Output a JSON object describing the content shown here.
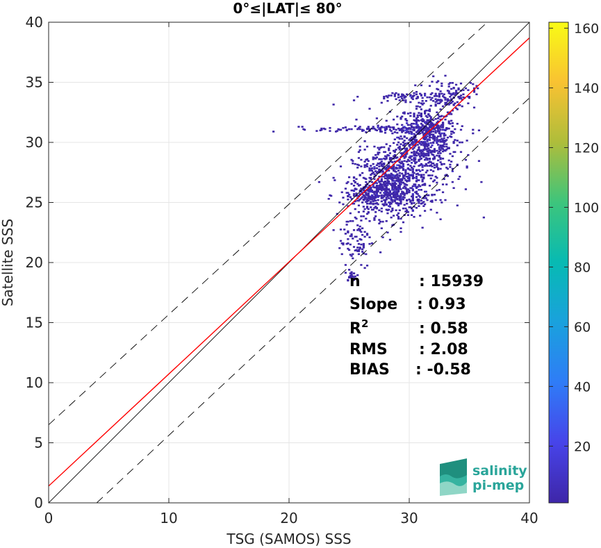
{
  "chart_data": {
    "type": "heatmap",
    "title": "0°≤|LAT|≤ 80°",
    "xlabel": "TSG (SAMOS) SSS",
    "ylabel": "Satellite SSS",
    "xlim": [
      0,
      40
    ],
    "ylim": [
      0,
      40
    ],
    "xticks": [
      "0",
      "10",
      "20",
      "30",
      "40"
    ],
    "yticks": [
      "0",
      "5",
      "10",
      "15",
      "20",
      "25",
      "30",
      "35",
      "40"
    ],
    "grid": true,
    "colorbar": {
      "range": [
        1,
        162
      ],
      "ticks": [
        "20",
        "40",
        "60",
        "80",
        "100",
        "120",
        "140",
        "160"
      ],
      "colormap": "parula"
    },
    "lines": [
      {
        "name": "identity",
        "color": "#000000",
        "style": "solid",
        "x": [
          0,
          40
        ],
        "y": [
          0,
          40
        ]
      },
      {
        "name": "regression",
        "color": "#ff0000",
        "style": "solid",
        "x": [
          0,
          40
        ],
        "y": [
          1.4,
          38.7
        ]
      },
      {
        "name": "upper-envelope",
        "color": "#000000",
        "style": "dashed",
        "x": [
          0,
          36.5
        ],
        "y": [
          6.5,
          40
        ]
      },
      {
        "name": "lower-envelope",
        "color": "#000000",
        "style": "dashed",
        "x": [
          4,
          40
        ],
        "y": [
          0,
          33.7
        ]
      }
    ],
    "density_clusters": [
      {
        "x": 31.5,
        "y": 30.5,
        "sx": 1.2,
        "sy": 1.3,
        "n": 500
      },
      {
        "x": 28.5,
        "y": 26.5,
        "sx": 1.6,
        "sy": 1.4,
        "n": 650
      },
      {
        "x": 27,
        "y": 25.6,
        "sx": 1.4,
        "sy": 0.5,
        "n": 200
      },
      {
        "x": 33.5,
        "y": 34,
        "sx": 1.0,
        "sy": 0.6,
        "n": 110
      },
      {
        "x": 29.5,
        "y": 33.8,
        "sx": 1.6,
        "sy": 0.2,
        "n": 60
      },
      {
        "x": 28,
        "y": 31.1,
        "sx": 2.8,
        "sy": 0.12,
        "n": 130
      },
      {
        "x": 25.5,
        "y": 22,
        "sx": 0.7,
        "sy": 1.3,
        "n": 80
      },
      {
        "x": 25.2,
        "y": 18.9,
        "sx": 0.3,
        "sy": 0.3,
        "n": 18
      },
      {
        "x": 30.5,
        "y": 28.5,
        "sx": 2.0,
        "sy": 2.2,
        "n": 300
      }
    ],
    "stats": [
      {
        "label": "n",
        "value": ": 15939"
      },
      {
        "label": "Slope",
        "value": ": 0.93"
      },
      {
        "label": "R",
        "sup": "2",
        "value": ": 0.58"
      },
      {
        "label": "RMS",
        "value": ": 2.08"
      },
      {
        "label": "BIAS",
        "value": ": -0.58"
      }
    ]
  },
  "logo": {
    "line1": "salinity",
    "line2": "pi-mep"
  }
}
